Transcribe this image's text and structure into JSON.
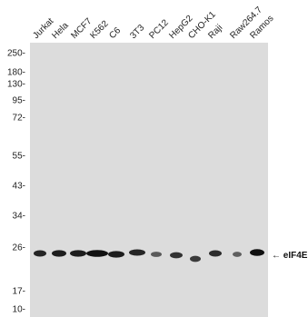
{
  "blot": {
    "lanes": [
      "Jurkat",
      "Hela",
      "MCF7",
      "K562",
      "C6",
      "3T3",
      "PC12",
      "HepG2",
      "CHO-K1",
      "Raji",
      "Raw264.7",
      "Ramos"
    ],
    "markers": [
      "250-",
      "180-",
      "130-",
      "95-",
      "72-",
      "55-",
      "43-",
      "34-",
      "26-",
      "17-",
      "10-"
    ],
    "target_label": "← eIF4E",
    "band_intensity": [
      0.85,
      0.9,
      0.9,
      1.0,
      0.9,
      0.85,
      0.45,
      0.75,
      0.7,
      0.8,
      0.4,
      1.0
    ],
    "colors": {
      "membrane": "#dcdcdc",
      "band": "#111111",
      "text": "#222222"
    }
  }
}
